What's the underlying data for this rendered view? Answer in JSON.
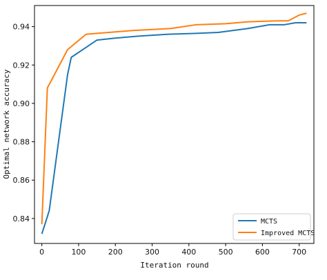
{
  "chart_data": {
    "type": "line",
    "title": "",
    "xlabel": "Iteration round",
    "ylabel": "Optimal network accuracy",
    "xlim": [
      -20,
      740
    ],
    "ylim": [
      0.827,
      0.951
    ],
    "xticks": [
      0,
      100,
      200,
      300,
      400,
      500,
      600,
      700
    ],
    "yticks": [
      0.84,
      0.86,
      0.88,
      0.9,
      0.92,
      0.94
    ],
    "ytick_labels": [
      "0.84",
      "0.86",
      "0.88",
      "0.90",
      "0.92",
      "0.94"
    ],
    "grid": false,
    "legend_position": "bottom-right",
    "series": [
      {
        "name": "MCTS",
        "color": "#1f77b4",
        "x": [
          0,
          20,
          70,
          80,
          150,
          200,
          260,
          340,
          420,
          480,
          560,
          620,
          660,
          690,
          720
        ],
        "y": [
          0.832,
          0.844,
          0.915,
          0.924,
          0.933,
          0.934,
          0.935,
          0.936,
          0.9365,
          0.937,
          0.939,
          0.941,
          0.941,
          0.942,
          0.942
        ]
      },
      {
        "name": "Improved MCTS",
        "color": "#ff7f0e",
        "x": [
          0,
          15,
          70,
          120,
          150,
          250,
          350,
          420,
          500,
          560,
          640,
          670,
          700,
          720
        ],
        "y": [
          0.837,
          0.908,
          0.928,
          0.936,
          0.9365,
          0.938,
          0.939,
          0.941,
          0.9415,
          0.9425,
          0.943,
          0.943,
          0.946,
          0.947
        ]
      }
    ]
  }
}
